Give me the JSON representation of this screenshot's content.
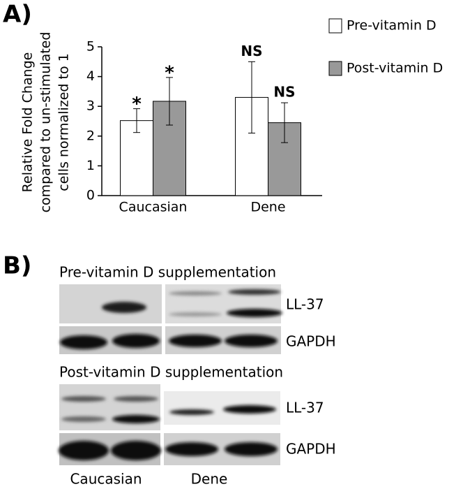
{
  "chart_data": {
    "type": "bar",
    "panel_label": "A)",
    "y_label": [
      "Relative Fold Change",
      "compared to un-stimulated",
      "cells normalized to 1"
    ],
    "categories": [
      "Caucasian",
      "Dene"
    ],
    "series": [
      {
        "name": "Pre-vitamin D",
        "color": "#ffffff",
        "values": [
          2.52,
          3.3
        ],
        "errors": [
          0.4,
          1.2
        ],
        "annotations": [
          "*",
          "NS"
        ]
      },
      {
        "name": "Post-vitamin D",
        "color": "#999999",
        "values": [
          3.17,
          2.45
        ],
        "errors": [
          0.8,
          0.67
        ],
        "annotations": [
          "*",
          "NS"
        ]
      }
    ],
    "ylim": [
      0,
      5
    ],
    "yticks": [
      0,
      1,
      2,
      3,
      4,
      5
    ],
    "grid": false
  },
  "panel_b": {
    "panel_label": "B)",
    "pre_title": "Pre-vitamin D supplementation",
    "post_title": "Post-vitamin D supplementation",
    "pre_rows": [
      "LL-37",
      "GAPDH"
    ],
    "post_rows": [
      "LL-37",
      "GAPDH"
    ],
    "groups": [
      "Caucasian",
      "Dene"
    ]
  }
}
